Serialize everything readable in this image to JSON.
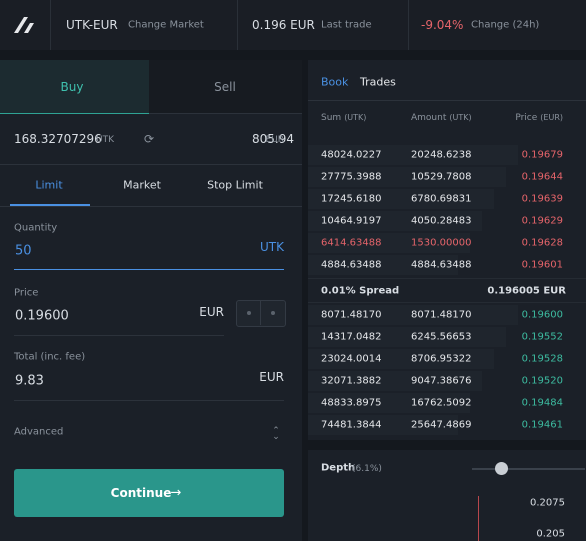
{
  "header": {
    "market": "UTK-EUR",
    "change_market": "Change Market",
    "last_trade_value": "0.196 EUR",
    "last_trade_label": "Last trade",
    "change_value": "-9.04%",
    "change_label": "Change (24h)"
  },
  "order_form": {
    "tabs": [
      "Buy",
      "Sell"
    ],
    "balances": [
      {
        "amount": "168.32707296",
        "unit": "UTK"
      },
      {
        "amount": "805.94",
        "unit": "EUR"
      }
    ],
    "order_types": [
      "Limit",
      "Market",
      "Stop Limit"
    ],
    "quantity": {
      "label": "Quantity",
      "value": "50",
      "unit": "UTK"
    },
    "price": {
      "label": "Price",
      "value": "0.19600",
      "unit": "EUR"
    },
    "total": {
      "label": "Total (inc. fee)",
      "value": "9.83",
      "unit": "EUR"
    },
    "advanced": "Advanced",
    "submit": "Continue"
  },
  "order_book": {
    "tabs": [
      "Book",
      "Trades"
    ],
    "columns": [
      {
        "name": "Sum",
        "unit": "(UTK)"
      },
      {
        "name": "Amount",
        "unit": "(UTK)"
      },
      {
        "name": "Price",
        "unit": "(EUR)"
      }
    ],
    "asks": [
      [
        "48024.0227",
        "20248.6238",
        "0.19679"
      ],
      [
        "27775.3988",
        "10529.7808",
        "0.19644"
      ],
      [
        "17245.6180",
        "6780.69831",
        "0.19639"
      ],
      [
        "10464.9197",
        "4050.28483",
        "0.19629"
      ],
      [
        "6414.63488",
        "1530.00000",
        "0.19628"
      ],
      [
        "4884.63488",
        "4884.63488",
        "0.19601"
      ]
    ],
    "spread": {
      "label": "0.01% Spread",
      "value": "0.196005 EUR"
    },
    "bids": [
      [
        "8071.48170",
        "8071.48170",
        "0.19600"
      ],
      [
        "14317.0482",
        "6245.56653",
        "0.19552"
      ],
      [
        "23024.0014",
        "8706.95322",
        "0.19528"
      ],
      [
        "32071.3882",
        "9047.38676",
        "0.19520"
      ],
      [
        "48833.8975",
        "16762.5092",
        "0.19484"
      ],
      [
        "74481.3844",
        "25647.4869",
        "0.19461"
      ]
    ]
  },
  "depth": {
    "label": "Depth",
    "percent": "(6.1%)",
    "price_levels": [
      "0.2075",
      "0.205"
    ]
  }
}
